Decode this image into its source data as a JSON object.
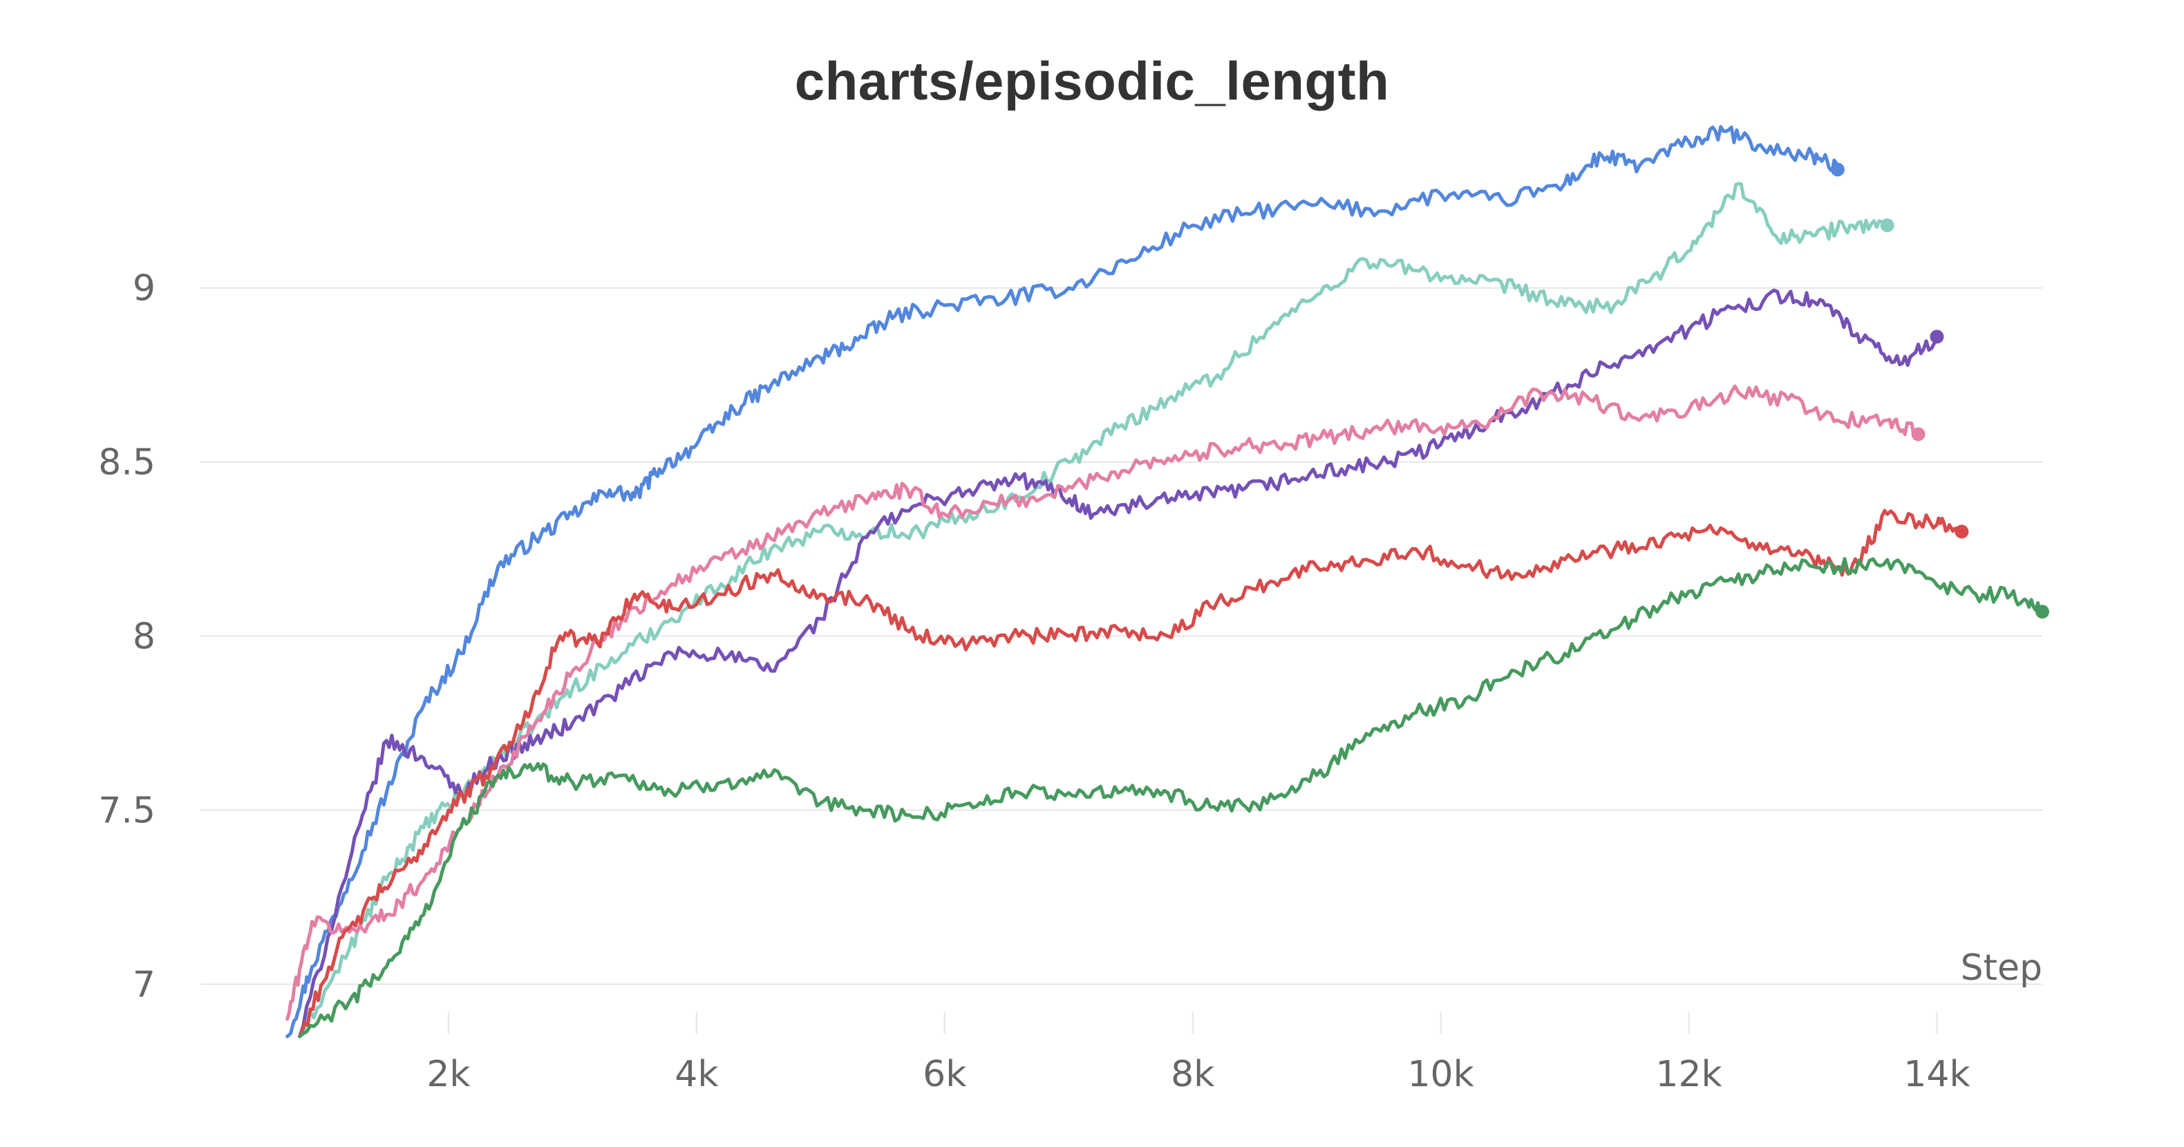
{
  "chart_data": {
    "type": "line",
    "title": "charts/episodic_length",
    "xlabel": "Step",
    "ylabel": "",
    "xlim": [
      0,
      14850
    ],
    "ylim": [
      6.85,
      9.45
    ],
    "x_ticks": [
      2000,
      4000,
      6000,
      8000,
      10000,
      12000,
      14000
    ],
    "x_tick_labels": [
      "2k",
      "4k",
      "6k",
      "8k",
      "10k",
      "12k",
      "14k"
    ],
    "y_ticks": [
      7,
      7.5,
      8,
      8.5,
      9
    ],
    "y_tick_labels": [
      "7",
      "7.5",
      "8",
      "8.5",
      "9"
    ],
    "grid": true,
    "legend": "none",
    "series": [
      {
        "color": "#5387DD",
        "x": [
          700,
          900,
          1200,
          1500,
          1800,
          2100,
          2400,
          2700,
          3000,
          3300,
          3500,
          3700,
          4000,
          4300,
          4600,
          5000,
          5300,
          5600,
          6000,
          6500,
          7000,
          7500,
          8000,
          8500,
          9000,
          9500,
          10000,
          10500,
          11000,
          11300,
          11600,
          12000,
          12300,
          12600,
          13000,
          13200
        ],
        "y": [
          6.85,
          7.05,
          7.3,
          7.55,
          7.8,
          7.95,
          8.2,
          8.28,
          8.35,
          8.42,
          8.4,
          8.48,
          8.55,
          8.65,
          8.72,
          8.8,
          8.85,
          8.92,
          8.95,
          8.97,
          9.0,
          9.08,
          9.18,
          9.22,
          9.24,
          9.22,
          9.27,
          9.25,
          9.3,
          9.38,
          9.35,
          9.42,
          9.45,
          9.4,
          9.38,
          9.34
        ]
      },
      {
        "color": "#87CEBF",
        "x": [
          800,
          1200,
          1500,
          1800,
          2100,
          2400,
          2700,
          3000,
          3400,
          3800,
          4200,
          4600,
          5000,
          5400,
          5800,
          6200,
          6600,
          7000,
          7400,
          7800,
          8200,
          8600,
          9000,
          9400,
          9800,
          10200,
          10600,
          11000,
          11400,
          11800,
          12100,
          12400,
          12700,
          13000,
          13300,
          13600
        ],
        "y": [
          6.85,
          7.1,
          7.3,
          7.45,
          7.55,
          7.65,
          7.75,
          7.85,
          7.95,
          8.05,
          8.15,
          8.25,
          8.3,
          8.3,
          8.3,
          8.35,
          8.4,
          8.5,
          8.6,
          8.68,
          8.75,
          8.88,
          8.98,
          9.08,
          9.05,
          9.02,
          9.0,
          8.95,
          8.95,
          9.05,
          9.15,
          9.3,
          9.15,
          9.15,
          9.18,
          9.18
        ]
      },
      {
        "color": "#7551B6",
        "x": [
          800,
          1200,
          1500,
          1800,
          2100,
          2400,
          2700,
          3000,
          3400,
          3800,
          4200,
          4600,
          5000,
          5400,
          5800,
          6200,
          6600,
          6900,
          7200,
          7600,
          8000,
          8400,
          8800,
          9200,
          9600,
          10000,
          10400,
          10800,
          11200,
          11600,
          12000,
          12400,
          12800,
          13100,
          13400,
          13700,
          14000
        ],
        "y": [
          6.85,
          7.35,
          7.7,
          7.65,
          7.55,
          7.65,
          7.7,
          7.75,
          7.85,
          7.95,
          7.95,
          7.9,
          8.05,
          8.3,
          8.38,
          8.42,
          8.45,
          8.42,
          8.35,
          8.38,
          8.4,
          8.42,
          8.45,
          8.48,
          8.5,
          8.55,
          8.62,
          8.68,
          8.75,
          8.82,
          8.88,
          8.95,
          8.98,
          8.95,
          8.85,
          8.78,
          8.86
        ]
      },
      {
        "color": "#E37FA4",
        "x": [
          700,
          900,
          1200,
          1500,
          1800,
          2100,
          2400,
          2700,
          3000,
          3400,
          3800,
          4200,
          4600,
          5000,
          5400,
          5700,
          6000,
          6400,
          6800,
          7200,
          7600,
          8000,
          8400,
          8800,
          9200,
          9600,
          10000,
          10400,
          10800,
          11200,
          11600,
          12000,
          12400,
          12800,
          13200,
          13600,
          13850
        ],
        "y": [
          6.9,
          7.18,
          7.15,
          7.2,
          7.3,
          7.45,
          7.6,
          7.75,
          7.9,
          8.05,
          8.15,
          8.22,
          8.28,
          8.35,
          8.4,
          8.42,
          8.35,
          8.38,
          8.4,
          8.45,
          8.5,
          8.52,
          8.55,
          8.55,
          8.58,
          8.6,
          8.6,
          8.62,
          8.7,
          8.68,
          8.62,
          8.65,
          8.7,
          8.68,
          8.62,
          8.62,
          8.58
        ]
      },
      {
        "color": "#D74B4B",
        "x": [
          800,
          1100,
          1400,
          1700,
          2000,
          2300,
          2600,
          2900,
          3200,
          3500,
          3800,
          4200,
          4600,
          5000,
          5400,
          5800,
          6200,
          6600,
          7000,
          7400,
          7800,
          8200,
          8600,
          9000,
          9400,
          9800,
          10200,
          10600,
          11000,
          11400,
          11800,
          12200,
          12600,
          13000,
          13300,
          13600,
          14000,
          14200
        ],
        "y": [
          6.85,
          7.1,
          7.25,
          7.35,
          7.5,
          7.6,
          7.75,
          8.0,
          7.98,
          8.12,
          8.08,
          8.12,
          8.18,
          8.12,
          8.1,
          8.0,
          7.98,
          8.0,
          8.0,
          8.02,
          8.0,
          8.1,
          8.15,
          8.2,
          8.22,
          8.25,
          8.2,
          8.18,
          8.22,
          8.25,
          8.28,
          8.3,
          8.25,
          8.22,
          8.18,
          8.35,
          8.32,
          8.3
        ]
      },
      {
        "color": "#479A5F",
        "x": [
          800,
          1200,
          1500,
          1800,
          2100,
          2400,
          2700,
          3000,
          3400,
          3800,
          4200,
          4600,
          5000,
          5400,
          5800,
          6200,
          6600,
          7000,
          7400,
          7800,
          8200,
          8600,
          9000,
          9400,
          9800,
          10200,
          10600,
          11000,
          11400,
          11800,
          12200,
          12600,
          13000,
          13400,
          13800,
          14200,
          14600,
          14850
        ],
        "y": [
          6.85,
          6.95,
          7.05,
          7.2,
          7.45,
          7.6,
          7.62,
          7.58,
          7.6,
          7.55,
          7.58,
          7.6,
          7.52,
          7.5,
          7.48,
          7.52,
          7.55,
          7.55,
          7.55,
          7.55,
          7.5,
          7.52,
          7.6,
          7.72,
          7.78,
          7.82,
          7.9,
          7.95,
          8.02,
          8.1,
          8.15,
          8.18,
          8.2,
          8.2,
          8.2,
          8.12,
          8.12,
          8.07
        ]
      }
    ]
  }
}
